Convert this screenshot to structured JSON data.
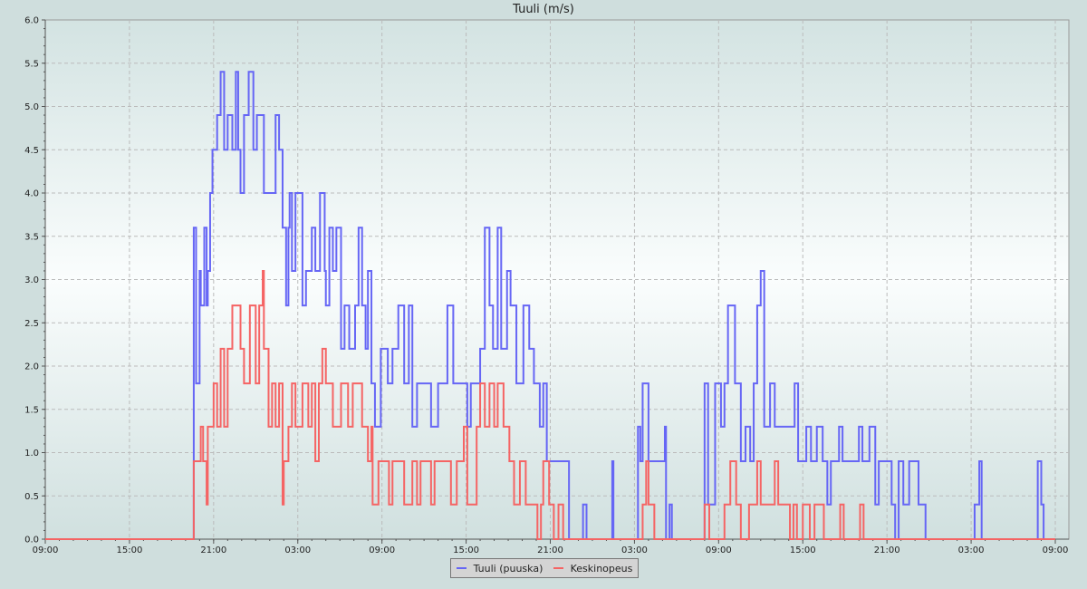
{
  "chart_data": {
    "type": "line",
    "step": true,
    "title": "Tuuli (m/s)",
    "xlabel": "",
    "ylabel": "",
    "ylim": [
      0,
      6
    ],
    "yticks": [
      "0.0",
      "0.5",
      "1.0",
      "1.5",
      "2.0",
      "2.5",
      "3.0",
      "3.5",
      "4.0",
      "4.5",
      "5.0",
      "5.5",
      "6.0"
    ],
    "xticks": [
      "09:00",
      "15:00",
      "21:00",
      "03:00",
      "09:00",
      "15:00",
      "21:00",
      "03:00",
      "09:00",
      "15:00",
      "21:00",
      "03:00",
      "09:00"
    ],
    "xlim": [
      "09:00",
      "09:57"
    ],
    "grid": true,
    "legend_placement": "bottom",
    "series": [
      {
        "name": "Tuuli (puuska)",
        "color": "#6666f5",
        "points": [
          [
            "09:00",
            0
          ],
          [
            "19:30",
            0
          ],
          [
            "19:35",
            3.6
          ],
          [
            "19:45",
            1.8
          ],
          [
            "20:00",
            3.1
          ],
          [
            "20:05",
            2.7
          ],
          [
            "20:20",
            3.6
          ],
          [
            "20:30",
            2.7
          ],
          [
            "20:35",
            3.1
          ],
          [
            "20:45",
            4.0
          ],
          [
            "20:55",
            4.5
          ],
          [
            "21:15",
            4.9
          ],
          [
            "21:30",
            5.4
          ],
          [
            "21:45",
            4.5
          ],
          [
            "22:00",
            4.9
          ],
          [
            "22:20",
            4.5
          ],
          [
            "22:35",
            5.4
          ],
          [
            "22:45",
            4.5
          ],
          [
            "22:55",
            4.0
          ],
          [
            "23:10",
            4.9
          ],
          [
            "23:30",
            5.4
          ],
          [
            "23:50",
            4.5
          ],
          [
            "00:05",
            4.9
          ],
          [
            "00:35",
            4.0
          ],
          [
            "01:25",
            4.9
          ],
          [
            "01:40",
            4.5
          ],
          [
            "01:55",
            3.6
          ],
          [
            "02:10",
            2.7
          ],
          [
            "02:20",
            3.6
          ],
          [
            "02:25",
            4.0
          ],
          [
            "02:35",
            3.1
          ],
          [
            "02:50",
            4.0
          ],
          [
            "03:20",
            2.7
          ],
          [
            "03:35",
            3.1
          ],
          [
            "04:00",
            3.6
          ],
          [
            "04:15",
            3.1
          ],
          [
            "04:35",
            4.0
          ],
          [
            "04:55",
            3.1
          ],
          [
            "05:00",
            2.7
          ],
          [
            "05:15",
            3.6
          ],
          [
            "05:30",
            3.1
          ],
          [
            "05:45",
            3.6
          ],
          [
            "06:05",
            2.2
          ],
          [
            "06:20",
            2.7
          ],
          [
            "06:40",
            2.2
          ],
          [
            "07:05",
            2.7
          ],
          [
            "07:20",
            3.6
          ],
          [
            "07:35",
            2.7
          ],
          [
            "07:50",
            2.2
          ],
          [
            "08:00",
            3.1
          ],
          [
            "08:15",
            1.8
          ],
          [
            "08:30",
            1.3
          ],
          [
            "08:55",
            2.2
          ],
          [
            "09:25",
            1.8
          ],
          [
            "09:45",
            2.2
          ],
          [
            "10:10",
            2.7
          ],
          [
            "10:35",
            1.8
          ],
          [
            "10:55",
            2.7
          ],
          [
            "11:10",
            1.3
          ],
          [
            "11:30",
            1.8
          ],
          [
            "12:30",
            1.3
          ],
          [
            "13:00",
            1.8
          ],
          [
            "13:40",
            2.7
          ],
          [
            "14:05",
            1.8
          ],
          [
            "15:05",
            1.3
          ],
          [
            "15:20",
            1.8
          ],
          [
            "16:00",
            2.2
          ],
          [
            "16:20",
            3.6
          ],
          [
            "16:40",
            2.7
          ],
          [
            "16:55",
            2.2
          ],
          [
            "17:15",
            3.6
          ],
          [
            "17:30",
            2.2
          ],
          [
            "17:55",
            3.1
          ],
          [
            "18:10",
            2.7
          ],
          [
            "18:35",
            1.8
          ],
          [
            "19:05",
            2.7
          ],
          [
            "19:30",
            2.2
          ],
          [
            "19:50",
            1.8
          ],
          [
            "20:15",
            1.3
          ],
          [
            "20:30",
            1.8
          ],
          [
            "20:45",
            0.9
          ],
          [
            "22:20",
            0.0
          ],
          [
            "23:20",
            0.4
          ],
          [
            "23:35",
            0.0
          ],
          [
            "01:25",
            0.9
          ],
          [
            "01:30",
            0.0
          ],
          [
            "03:15",
            1.3
          ],
          [
            "03:25",
            0.9
          ],
          [
            "03:35",
            1.8
          ],
          [
            "04:00",
            0.9
          ],
          [
            "05:10",
            1.3
          ],
          [
            "05:15",
            0.0
          ],
          [
            "05:30",
            0.4
          ],
          [
            "05:40",
            0.0
          ],
          [
            "08:00",
            1.8
          ],
          [
            "08:15",
            0.4
          ],
          [
            "08:45",
            1.8
          ],
          [
            "09:10",
            1.3
          ],
          [
            "09:25",
            1.8
          ],
          [
            "09:40",
            2.7
          ],
          [
            "10:10",
            1.8
          ],
          [
            "10:35",
            0.9
          ],
          [
            "10:55",
            1.3
          ],
          [
            "11:15",
            0.9
          ],
          [
            "11:30",
            1.8
          ],
          [
            "11:45",
            2.7
          ],
          [
            "12:00",
            3.1
          ],
          [
            "12:15",
            1.3
          ],
          [
            "12:40",
            1.8
          ],
          [
            "13:00",
            1.3
          ],
          [
            "14:25",
            1.8
          ],
          [
            "14:40",
            0.9
          ],
          [
            "15:15",
            1.3
          ],
          [
            "15:35",
            0.9
          ],
          [
            "16:00",
            1.3
          ],
          [
            "16:25",
            0.9
          ],
          [
            "16:45",
            0.4
          ],
          [
            "17:00",
            0.9
          ],
          [
            "17:35",
            1.3
          ],
          [
            "17:50",
            0.9
          ],
          [
            "19:00",
            1.3
          ],
          [
            "19:15",
            0.9
          ],
          [
            "19:45",
            1.3
          ],
          [
            "20:10",
            0.4
          ],
          [
            "20:25",
            0.9
          ],
          [
            "21:20",
            0.4
          ],
          [
            "21:35",
            0.0
          ],
          [
            "21:50",
            0.9
          ],
          [
            "22:10",
            0.4
          ],
          [
            "22:35",
            0.9
          ],
          [
            "23:15",
            0.4
          ],
          [
            "23:45",
            0.0
          ],
          [
            "03:15",
            0.4
          ],
          [
            "03:35",
            0.9
          ],
          [
            "03:45",
            0.0
          ],
          [
            "07:45",
            0.9
          ],
          [
            "08:00",
            0.4
          ],
          [
            "08:10",
            0.0
          ],
          [
            "09:00",
            0.0
          ]
        ]
      },
      {
        "name": "Keskinopeus",
        "color": "#f56464",
        "points": [
          [
            "09:00",
            0
          ],
          [
            "19:30",
            0
          ],
          [
            "19:35",
            0.9
          ],
          [
            "20:05",
            1.3
          ],
          [
            "20:15",
            0.9
          ],
          [
            "20:30",
            0.4
          ],
          [
            "20:35",
            1.3
          ],
          [
            "21:00",
            1.8
          ],
          [
            "21:15",
            1.3
          ],
          [
            "21:30",
            2.2
          ],
          [
            "21:45",
            1.3
          ],
          [
            "22:00",
            2.2
          ],
          [
            "22:20",
            2.7
          ],
          [
            "22:55",
            2.2
          ],
          [
            "23:10",
            1.8
          ],
          [
            "23:35",
            2.7
          ],
          [
            "00:00",
            1.8
          ],
          [
            "00:15",
            2.7
          ],
          [
            "00:30",
            3.1
          ],
          [
            "00:35",
            2.2
          ],
          [
            "00:55",
            1.3
          ],
          [
            "01:10",
            1.8
          ],
          [
            "01:25",
            1.3
          ],
          [
            "01:40",
            1.8
          ],
          [
            "01:55",
            0.4
          ],
          [
            "02:00",
            0.9
          ],
          [
            "02:20",
            1.3
          ],
          [
            "02:35",
            1.8
          ],
          [
            "02:50",
            1.3
          ],
          [
            "03:20",
            1.8
          ],
          [
            "03:45",
            1.3
          ],
          [
            "04:00",
            1.8
          ],
          [
            "04:15",
            0.9
          ],
          [
            "04:30",
            1.8
          ],
          [
            "04:45",
            2.2
          ],
          [
            "05:00",
            1.8
          ],
          [
            "05:30",
            1.3
          ],
          [
            "06:05",
            1.8
          ],
          [
            "06:35",
            1.3
          ],
          [
            "06:55",
            1.8
          ],
          [
            "07:35",
            1.3
          ],
          [
            "08:00",
            0.9
          ],
          [
            "08:15",
            1.3
          ],
          [
            "08:20",
            0.4
          ],
          [
            "08:45",
            0.9
          ],
          [
            "09:30",
            0.4
          ],
          [
            "09:45",
            0.9
          ],
          [
            "10:35",
            0.4
          ],
          [
            "11:10",
            0.9
          ],
          [
            "11:30",
            0.4
          ],
          [
            "11:45",
            0.9
          ],
          [
            "12:30",
            0.4
          ],
          [
            "12:45",
            0.9
          ],
          [
            "13:55",
            0.4
          ],
          [
            "14:20",
            0.9
          ],
          [
            "14:50",
            1.3
          ],
          [
            "15:05",
            0.4
          ],
          [
            "15:45",
            1.3
          ],
          [
            "16:00",
            1.8
          ],
          [
            "16:20",
            1.3
          ],
          [
            "16:40",
            1.8
          ],
          [
            "17:00",
            1.3
          ],
          [
            "17:15",
            1.8
          ],
          [
            "17:40",
            1.3
          ],
          [
            "18:05",
            0.9
          ],
          [
            "18:25",
            0.4
          ],
          [
            "18:50",
            0.9
          ],
          [
            "19:15",
            0.4
          ],
          [
            "20:05",
            0.0
          ],
          [
            "20:20",
            0.4
          ],
          [
            "20:30",
            0.9
          ],
          [
            "20:55",
            0.4
          ],
          [
            "21:15",
            0.0
          ],
          [
            "21:35",
            0.4
          ],
          [
            "21:55",
            0.0
          ],
          [
            "03:35",
            0.4
          ],
          [
            "03:50",
            0.9
          ],
          [
            "04:00",
            0.4
          ],
          [
            "04:25",
            0.0
          ],
          [
            "08:00",
            0.4
          ],
          [
            "08:20",
            0.0
          ],
          [
            "09:25",
            0.4
          ],
          [
            "09:50",
            0.9
          ],
          [
            "10:15",
            0.4
          ],
          [
            "10:35",
            0.0
          ],
          [
            "11:10",
            0.4
          ],
          [
            "11:45",
            0.9
          ],
          [
            "12:00",
            0.4
          ],
          [
            "13:00",
            0.9
          ],
          [
            "13:15",
            0.4
          ],
          [
            "14:05",
            0.0
          ],
          [
            "14:20",
            0.4
          ],
          [
            "14:35",
            0.0
          ],
          [
            "15:00",
            0.4
          ],
          [
            "15:30",
            0.0
          ],
          [
            "15:50",
            0.4
          ],
          [
            "16:30",
            0.0
          ],
          [
            "17:40",
            0.4
          ],
          [
            "17:55",
            0.0
          ],
          [
            "19:05",
            0.4
          ],
          [
            "19:20",
            0.0
          ],
          [
            "09:00",
            0.0
          ]
        ]
      }
    ]
  }
}
